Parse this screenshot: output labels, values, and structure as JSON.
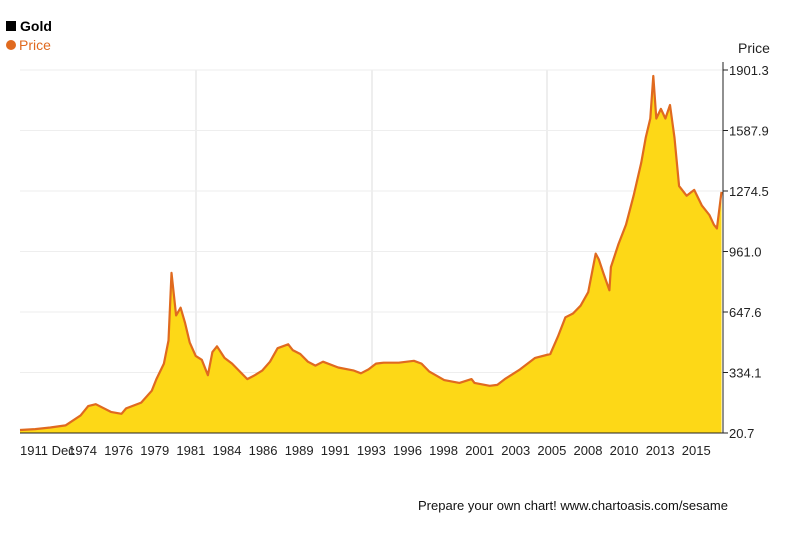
{
  "colors": {
    "accent": "#e06a1f",
    "fill": "#fdd817",
    "grid": "#dddddd"
  },
  "legend": {
    "title": "Gold",
    "series_name": "Price"
  },
  "footer": {
    "text": "Prepare your own chart! www.chartoasis.com/sesame"
  },
  "chart_data": {
    "type": "area",
    "title": "Gold",
    "xlabel": "",
    "ylabel": "Price",
    "y_axis_position": "right",
    "ylim": [
      20.7,
      1901.3
    ],
    "yticks": [
      "20.7",
      "334.1",
      "647.6",
      "961.0",
      "1274.5",
      "1587.9",
      "1901.3"
    ],
    "xticks": [
      "1911 Dec",
      "1974",
      "1976",
      "1979",
      "1981",
      "1984",
      "1986",
      "1989",
      "1991",
      "1993",
      "1996",
      "1998",
      "2001",
      "2003",
      "2005",
      "2008",
      "2010",
      "2013",
      "2015"
    ],
    "grid": true,
    "legend_position": "top-left",
    "series": [
      {
        "name": "Price",
        "x": [
          1970,
          1971,
          1972,
          1973,
          1974,
          1974.5,
          1975,
          1976,
          1976.7,
          1977,
          1978,
          1978.7,
          1979,
          1979.5,
          1979.8,
          1980.0,
          1980.3,
          1980.6,
          1980.9,
          1981.2,
          1981.6,
          1982.0,
          1982.4,
          1982.7,
          1983.0,
          1983.5,
          1984.0,
          1984.5,
          1985.0,
          1985.5,
          1986.0,
          1986.5,
          1987.0,
          1987.7,
          1988.0,
          1988.5,
          1989.0,
          1989.5,
          1990.0,
          1991.0,
          1992.0,
          1992.5,
          1993.0,
          1993.5,
          1994.0,
          1995.0,
          1996.0,
          1996.5,
          1997.0,
          1998.0,
          1999.0,
          1999.8,
          2000.0,
          2001.0,
          2001.5,
          2002.0,
          2003.0,
          2004.0,
          2005.0,
          2005.5,
          2006.0,
          2006.5,
          2007.0,
          2007.5,
          2008.0,
          2008.2,
          2008.5,
          2008.9,
          2009.0,
          2009.5,
          2010.0,
          2010.5,
          2011.0,
          2011.3,
          2011.6,
          2011.8,
          2012.0,
          2012.3,
          2012.6,
          2012.9,
          2013.2,
          2013.5,
          2014.0,
          2014.5,
          2015.0,
          2015.5,
          2015.8,
          2016.0,
          2016.3
        ],
        "values": [
          36,
          41,
          49,
          60,
          112,
          160,
          170,
          130,
          120,
          148,
          178,
          240,
          300,
          380,
          500,
          850,
          630,
          670,
          590,
          490,
          420,
          400,
          320,
          440,
          470,
          410,
          380,
          340,
          300,
          320,
          345,
          390,
          460,
          480,
          450,
          430,
          390,
          370,
          390,
          360,
          345,
          330,
          350,
          380,
          385,
          385,
          395,
          380,
          340,
          295,
          280,
          300,
          280,
          265,
          270,
          300,
          350,
          410,
          430,
          520,
          620,
          640,
          680,
          750,
          950,
          920,
          850,
          760,
          880,
          1000,
          1100,
          1250,
          1420,
          1550,
          1650,
          1870,
          1650,
          1700,
          1650,
          1720,
          1550,
          1300,
          1250,
          1280,
          1200,
          1150,
          1100,
          1080,
          1270
        ]
      }
    ]
  }
}
